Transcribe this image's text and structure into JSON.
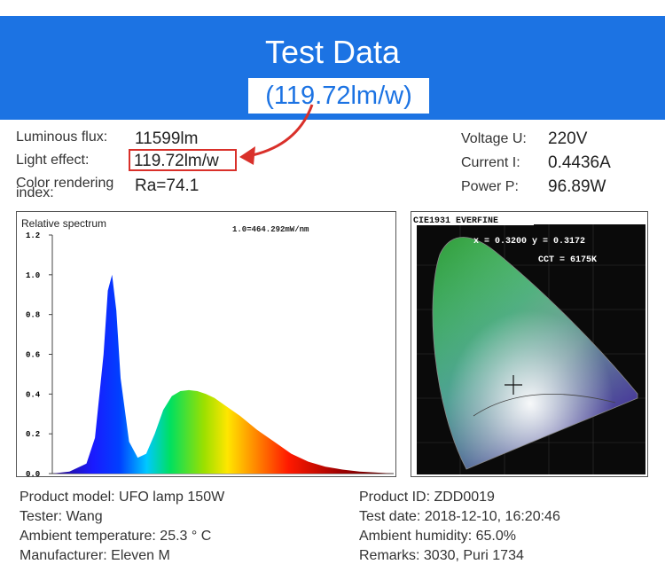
{
  "banner": {
    "title": "Test Data",
    "subtitle": "(119.72lm/w)"
  },
  "specs": {
    "luminous_flux_label": "Luminous flux:",
    "luminous_flux_value": "11599lm",
    "light_effect_label": "Light effect:",
    "light_effect_value": "119.72lm/w",
    "cri_label_line1": "Color rendering",
    "cri_label_line2": "index:",
    "cri_value": "Ra=74.1",
    "voltage_label": "Voltage U:",
    "voltage_value": "220V",
    "current_label": "Current I:",
    "current_value": "0.4436A",
    "power_label": "Power P:",
    "power_value": "96.89W"
  },
  "chart_data": [
    {
      "type": "area",
      "title": "Relative spectrum",
      "annotation": "1.0=464.292mW/nm",
      "x": [
        380,
        400,
        420,
        430,
        440,
        445,
        450,
        455,
        460,
        470,
        480,
        490,
        500,
        510,
        520,
        530,
        540,
        550,
        560,
        570,
        580,
        590,
        600,
        620,
        640,
        660,
        680,
        700,
        720,
        740,
        760,
        780
      ],
      "series": [
        {
          "values": [
            0.0,
            0.01,
            0.05,
            0.18,
            0.6,
            0.92,
            1.0,
            0.82,
            0.48,
            0.16,
            0.08,
            0.1,
            0.2,
            0.32,
            0.39,
            0.415,
            0.42,
            0.415,
            0.4,
            0.38,
            0.35,
            0.32,
            0.29,
            0.22,
            0.16,
            0.1,
            0.06,
            0.035,
            0.02,
            0.01,
            0.005,
            0.0
          ]
        }
      ],
      "ylim": [
        0,
        1.2
      ],
      "yticks": [
        "1.2",
        "1.0",
        "0.8",
        "0.6",
        "0.4",
        "0.2",
        "0.0"
      ]
    },
    {
      "type": "scatter",
      "title": "CIE1931 EVERFINE",
      "coord_text": "x = 0.3200  y = 0.3172",
      "cct_text": "CCT = 6175K",
      "points": [
        {
          "x": 0.32,
          "y": 0.3172
        }
      ]
    }
  ],
  "info": {
    "model": "Product model: UFO lamp 150W",
    "tester": "Tester: Wang",
    "ambient_temp": "Ambient temperature: 25.3 ° C",
    "manufacturer": "Manufacturer: Eleven M",
    "product_id": "Product ID: ZDD0019",
    "test_date": "Test date: 2018-12-10, 16:20:46",
    "humidity": "Ambient humidity: 65.0%",
    "remarks": "Remarks: 3030, Puri 1734"
  },
  "colors": {
    "banner": "#1c73e3",
    "highlight": "#d9302a"
  }
}
